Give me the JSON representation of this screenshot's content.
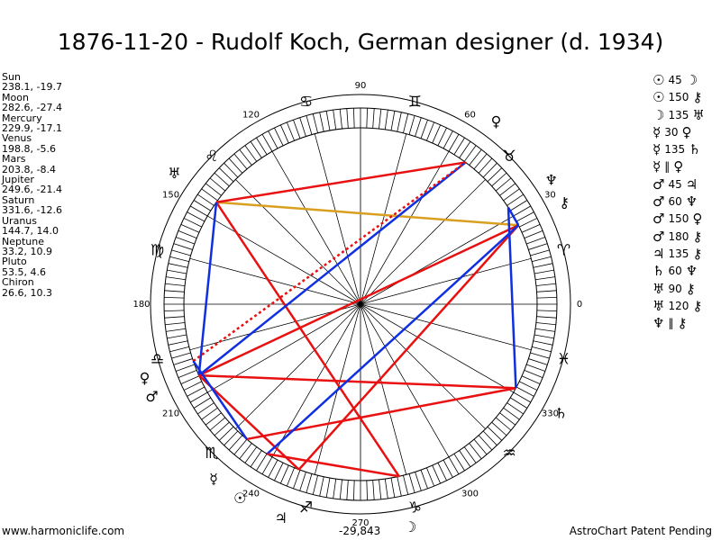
{
  "title": "1876-11-20 - Rudolf Koch, German designer (d. 1934)",
  "planets": [
    {
      "name": "Sun",
      "coords": "238.1, -19.7"
    },
    {
      "name": "Moon",
      "coords": "282.6, -27.4"
    },
    {
      "name": "Mercury",
      "coords": "229.9, -17.1"
    },
    {
      "name": "Venus",
      "coords": "198.8, -5.6"
    },
    {
      "name": "Mars",
      "coords": "203.8, -8.4"
    },
    {
      "name": "Jupiter",
      "coords": "249.6, -21.4"
    },
    {
      "name": "Saturn",
      "coords": "331.6, -12.6"
    },
    {
      "name": "Uranus",
      "coords": "144.7, 14.0"
    },
    {
      "name": "Neptune",
      "coords": "33.2, 10.9"
    },
    {
      "name": "Pluto",
      "coords": "53.5, 4.6"
    },
    {
      "name": "Chiron",
      "coords": "26.6, 10.3"
    }
  ],
  "aspects": [
    {
      "p1": "☉",
      "angle": "45",
      "p2": "☽"
    },
    {
      "p1": "☉",
      "angle": "150",
      "p2": "⚷"
    },
    {
      "p1": "☽",
      "angle": "135",
      "p2": "♅"
    },
    {
      "p1": "☿",
      "angle": "30",
      "p2": "♀"
    },
    {
      "p1": "☿",
      "angle": "135",
      "p2": "♄"
    },
    {
      "p1": "☿",
      "angle": "‖",
      "p2": "♀"
    },
    {
      "p1": "♂",
      "angle": "45",
      "p2": "♃"
    },
    {
      "p1": "♂",
      "angle": "60",
      "p2": "♆"
    },
    {
      "p1": "♂",
      "angle": "150",
      "p2": "♀"
    },
    {
      "p1": "♂",
      "angle": "180",
      "p2": "⚷"
    },
    {
      "p1": "♃",
      "angle": "135",
      "p2": "⚷"
    },
    {
      "p1": "♄",
      "angle": "60",
      "p2": "♆"
    },
    {
      "p1": "♅",
      "angle": "90",
      "p2": "⚷"
    },
    {
      "p1": "♅",
      "angle": "120",
      "p2": "⚷"
    },
    {
      "p1": "♆",
      "angle": "‖",
      "p2": "⚷"
    }
  ],
  "degree_labels": [
    "0",
    "30",
    "60",
    "90",
    "120",
    "150",
    "180",
    "210",
    "240",
    "270",
    "300",
    "330"
  ],
  "zodiac_signs": [
    {
      "glyph": "♈",
      "lon": 15
    },
    {
      "glyph": "♉",
      "lon": 45
    },
    {
      "glyph": "♊",
      "lon": 75
    },
    {
      "glyph": "♋",
      "lon": 105
    },
    {
      "glyph": "♌",
      "lon": 135
    },
    {
      "glyph": "♍",
      "lon": 165
    },
    {
      "glyph": "♎",
      "lon": 195
    },
    {
      "glyph": "♏",
      "lon": 225
    },
    {
      "glyph": "♐",
      "lon": 255
    },
    {
      "glyph": "♑",
      "lon": 285
    },
    {
      "glyph": "♒",
      "lon": 315
    },
    {
      "glyph": "♓",
      "lon": 345
    }
  ],
  "planet_glyphs": [
    {
      "glyph": "☉",
      "lon": 238.1
    },
    {
      "glyph": "☽",
      "lon": 282.6
    },
    {
      "glyph": "☿",
      "lon": 229.9
    },
    {
      "glyph": "♀",
      "lon": 198.8
    },
    {
      "glyph": "♂",
      "lon": 203.8
    },
    {
      "glyph": "♃",
      "lon": 249.6
    },
    {
      "glyph": "♄",
      "lon": 331.6
    },
    {
      "glyph": "♅",
      "lon": 144.7
    },
    {
      "glyph": "♆",
      "lon": 33.2
    },
    {
      "glyph": "♀",
      "lon": 53.5
    },
    {
      "glyph": "⚷",
      "lon": 26.6
    }
  ],
  "aspect_lines": [
    {
      "a": 144.7,
      "b": 26.6,
      "color": "#d9a020"
    },
    {
      "a": 144.7,
      "b": 53.5,
      "color": "#e81010"
    },
    {
      "a": 144.7,
      "b": 282.6,
      "color": "#e81010"
    },
    {
      "a": 144.7,
      "b": 203.8,
      "color": "#1030e0"
    },
    {
      "a": 203.8,
      "b": 26.6,
      "color": "#e81010"
    },
    {
      "a": 203.8,
      "b": 53.5,
      "color": "#1030e0"
    },
    {
      "a": 203.8,
      "b": 331.6,
      "color": "#e81010"
    },
    {
      "a": 203.8,
      "b": 249.6,
      "color": "#e81010"
    },
    {
      "a": 198.8,
      "b": 53.5,
      "color": "#e81010",
      "dotted": true
    },
    {
      "a": 229.9,
      "b": 331.6,
      "color": "#e81010"
    },
    {
      "a": 249.6,
      "b": 26.6,
      "color": "#e81010"
    },
    {
      "a": 238.1,
      "b": 26.6,
      "color": "#1030e0"
    },
    {
      "a": 238.1,
      "b": 282.6,
      "color": "#e81010"
    },
    {
      "a": 331.6,
      "b": 33.2,
      "color": "#1030e0"
    },
    {
      "a": 33.2,
      "b": 26.6,
      "color": "#1030e0"
    },
    {
      "a": 229.9,
      "b": 198.8,
      "color": "#1030e0"
    }
  ],
  "footer": {
    "left": "www.harmoniclife.com",
    "center": "-29,843",
    "right": "AstroChart Patent Pending"
  }
}
